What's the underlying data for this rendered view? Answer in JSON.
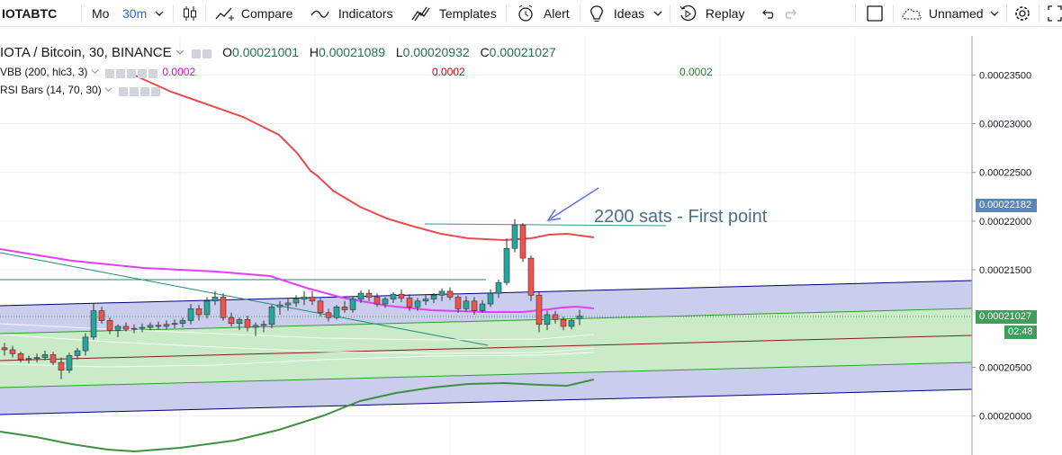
{
  "toolbar": {
    "symbol": "IOTABTC",
    "compare_prefix": "Mo",
    "interval": "30m",
    "compare_label": "Compare",
    "indicators_label": "Indicators",
    "templates_label": "Templates",
    "alert_label": "Alert",
    "ideas_label": "Ideas",
    "replay_label": "Replay",
    "layout_name": "Unnamed"
  },
  "legend": {
    "title": "IOTA / Bitcoin, 30, BINANCE",
    "o_label": "O",
    "o_value": "0.00021001",
    "h_label": "H",
    "h_value": "0.00021089",
    "l_label": "L",
    "l_value": "0.00020932",
    "c_label": "C",
    "c_value": "0.00021027",
    "ind1_name": "VBB (200, hlc3, 3)",
    "ind1_v1": "0.0002",
    "ind1_v2": "0.0002",
    "ind1_v3": "0.0002",
    "ind2_name": "RSI Bars (14, 70, 30)"
  },
  "annotation": {
    "text": "2200 sats - First point"
  },
  "price_axis": {
    "ticks": [
      "0.00023500",
      "0.00023000",
      "0.00022500",
      "0.00022000",
      "0.00021500",
      "0.00020500",
      "0.00020000"
    ],
    "tag_high": "0.00022182",
    "tag_last": "0.00021027",
    "countdown": "02:48"
  },
  "colors": {
    "up": "#26a69a",
    "down": "#ef5350",
    "upper_band": "#e84c4c",
    "basis": "#e040fb",
    "lower_band": "#43a047",
    "channel_blue": "#000080",
    "channel_green": "#2e9d2e",
    "accent": "#2962ff",
    "tag_blue": "#5b86b8",
    "tag_green": "#3e9e5a"
  },
  "chart_data": {
    "type": "candlestick",
    "symbol": "IOTA / Bitcoin, 30, BINANCE",
    "last": {
      "open": 0.00021001,
      "high": 0.00021089,
      "low": 0.00020932,
      "close": 0.00021027
    },
    "ylim": [
      0.000196,
      0.000239
    ],
    "y_ticks": [
      0.000235,
      0.00023,
      0.000225,
      0.00022,
      0.000215,
      0.000205,
      0.0002
    ],
    "candles": [
      [
        0.000207,
        0.0002075,
        0.0002062,
        0.0002068
      ],
      [
        0.0002068,
        0.0002072,
        0.000206,
        0.0002064
      ],
      [
        0.0002064,
        0.0002066,
        0.0002055,
        0.0002058
      ],
      [
        0.0002058,
        0.0002062,
        0.0002054,
        0.0002059
      ],
      [
        0.0002059,
        0.0002064,
        0.0002055,
        0.000206
      ],
      [
        0.000206,
        0.0002067,
        0.0002057,
        0.0002063
      ],
      [
        0.0002063,
        0.0002066,
        0.0002052,
        0.0002055
      ],
      [
        0.0002055,
        0.000206,
        0.0002038,
        0.0002047
      ],
      [
        0.0002047,
        0.0002065,
        0.0002044,
        0.0002062
      ],
      [
        0.0002062,
        0.000207,
        0.0002058,
        0.0002067
      ],
      [
        0.0002067,
        0.0002085,
        0.0002062,
        0.0002081
      ],
      [
        0.0002081,
        0.0002115,
        0.0002078,
        0.0002108
      ],
      [
        0.0002108,
        0.0002112,
        0.0002095,
        0.0002098
      ],
      [
        0.0002098,
        0.0002101,
        0.0002084,
        0.0002088
      ],
      [
        0.0002088,
        0.0002094,
        0.0002081,
        0.0002092
      ],
      [
        0.0002092,
        0.0002096,
        0.0002087,
        0.0002089
      ],
      [
        0.0002089,
        0.0002094,
        0.0002085,
        0.000209
      ],
      [
        0.000209,
        0.0002095,
        0.0002086,
        0.0002091
      ],
      [
        0.0002091,
        0.0002096,
        0.0002088,
        0.0002093
      ],
      [
        0.0002093,
        0.0002097,
        0.0002089,
        0.0002092
      ],
      [
        0.0002092,
        0.0002098,
        0.0002089,
        0.0002094
      ],
      [
        0.0002094,
        0.0002099,
        0.000209,
        0.0002095
      ],
      [
        0.0002095,
        0.0002101,
        0.0002091,
        0.0002098
      ],
      [
        0.0002098,
        0.0002115,
        0.0002094,
        0.000211
      ],
      [
        0.000211,
        0.0002114,
        0.0002098,
        0.0002104
      ],
      [
        0.0002104,
        0.0002122,
        0.00021,
        0.0002118
      ],
      [
        0.0002118,
        0.0002128,
        0.0002114,
        0.0002122
      ],
      [
        0.0002122,
        0.0002126,
        0.0002098,
        0.0002101
      ],
      [
        0.0002101,
        0.0002106,
        0.0002092,
        0.0002095
      ],
      [
        0.0002095,
        0.0002101,
        0.0002088,
        0.0002099
      ],
      [
        0.0002099,
        0.0002103,
        0.0002087,
        0.0002091
      ],
      [
        0.0002091,
        0.0002096,
        0.0002082,
        0.0002093
      ],
      [
        0.0002093,
        0.0002098,
        0.0002086,
        0.0002094
      ],
      [
        0.0002094,
        0.0002114,
        0.000209,
        0.0002112
      ],
      [
        0.0002112,
        0.0002118,
        0.0002104,
        0.0002114
      ],
      [
        0.0002114,
        0.0002121,
        0.0002108,
        0.0002116
      ],
      [
        0.0002116,
        0.0002124,
        0.0002112,
        0.000212
      ],
      [
        0.000212,
        0.0002128,
        0.0002114,
        0.0002122
      ],
      [
        0.0002122,
        0.0002128,
        0.0002114,
        0.0002118
      ],
      [
        0.0002118,
        0.0002121,
        0.0002102,
        0.0002106
      ],
      [
        0.0002106,
        0.000211,
        0.0002097,
        0.0002101
      ],
      [
        0.0002101,
        0.0002114,
        0.0002099,
        0.0002112
      ],
      [
        0.0002112,
        0.0002118,
        0.0002106,
        0.0002109
      ],
      [
        0.0002109,
        0.0002122,
        0.0002106,
        0.000212
      ],
      [
        0.000212,
        0.0002129,
        0.0002116,
        0.0002126
      ],
      [
        0.0002126,
        0.000213,
        0.0002118,
        0.0002122
      ],
      [
        0.0002122,
        0.0002126,
        0.0002112,
        0.0002115
      ],
      [
        0.0002115,
        0.0002122,
        0.0002111,
        0.000212
      ],
      [
        0.000212,
        0.0002127,
        0.0002116,
        0.0002125
      ],
      [
        0.0002125,
        0.000213,
        0.0002117,
        0.0002121
      ],
      [
        0.0002121,
        0.0002125,
        0.0002108,
        0.0002112
      ],
      [
        0.0002112,
        0.0002121,
        0.0002108,
        0.0002118
      ],
      [
        0.0002118,
        0.0002124,
        0.0002114,
        0.000212
      ],
      [
        0.000212,
        0.0002126,
        0.0002116,
        0.0002124
      ],
      [
        0.0002124,
        0.0002131,
        0.0002118,
        0.0002128
      ],
      [
        0.0002128,
        0.0002132,
        0.0002119,
        0.0002122
      ],
      [
        0.0002122,
        0.0002124,
        0.0002106,
        0.000211
      ],
      [
        0.000211,
        0.0002123,
        0.0002107,
        0.0002118
      ],
      [
        0.0002118,
        0.0002122,
        0.0002104,
        0.0002108
      ],
      [
        0.0002108,
        0.0002119,
        0.0002106,
        0.0002115
      ],
      [
        0.0002115,
        0.000213,
        0.0002112,
        0.0002126
      ],
      [
        0.0002126,
        0.000214,
        0.0002121,
        0.0002137
      ],
      [
        0.0002137,
        0.0002182,
        0.0002134,
        0.0002172
      ],
      [
        0.0002172,
        0.0002202,
        0.0002168,
        0.0002196
      ],
      [
        0.0002196,
        0.0002198,
        0.0002158,
        0.0002162
      ],
      [
        0.0002162,
        0.0002165,
        0.0002118,
        0.0002124
      ],
      [
        0.0002124,
        0.0002127,
        0.0002086,
        0.0002094
      ],
      [
        0.0002094,
        0.0002108,
        0.0002088,
        0.0002104
      ],
      [
        0.0002104,
        0.0002108,
        0.0002095,
        0.0002099
      ],
      [
        0.0002099,
        0.0002102,
        0.0002088,
        0.0002092
      ],
      [
        0.0002092,
        0.00021,
        0.0002089,
        0.0002098
      ],
      [
        0.00021001,
        0.00021089,
        0.00020932,
        0.00021027
      ]
    ]
  }
}
